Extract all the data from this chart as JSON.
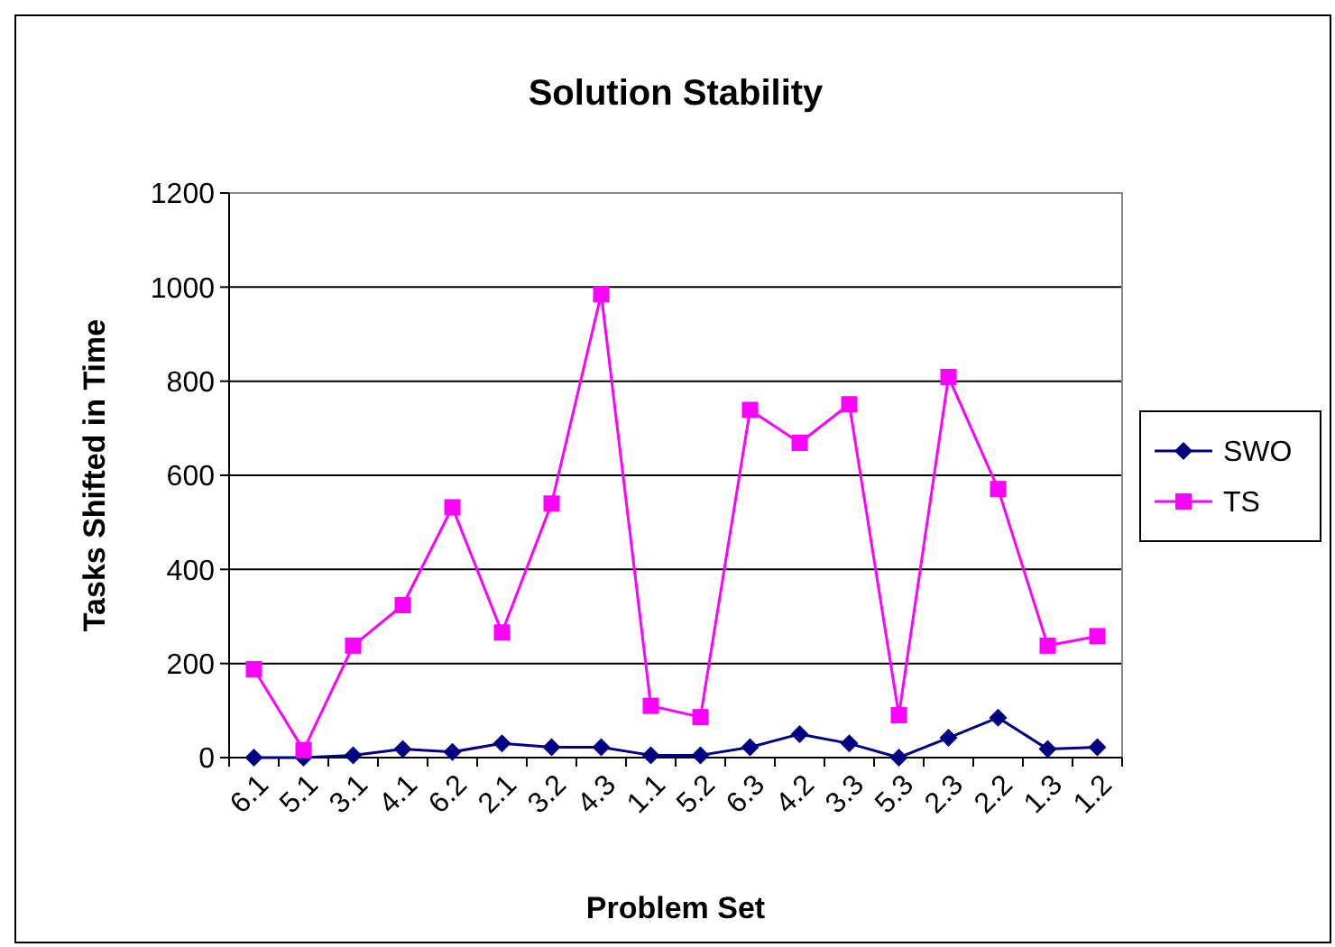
{
  "chart_data": {
    "type": "line",
    "title": "Solution Stability",
    "xlabel": "Problem Set",
    "ylabel": "Tasks Shifted in Time",
    "categories": [
      "6.1",
      "5.1",
      "3.1",
      "4.1",
      "6.2",
      "2.1",
      "3.2",
      "4.3",
      "1.1",
      "5.2",
      "6.3",
      "4.2",
      "3.3",
      "5.3",
      "2.3",
      "2.2",
      "1.3",
      "1.2"
    ],
    "series": [
      {
        "name": "SWO",
        "color": "#000080",
        "marker": "diamond",
        "values": [
          0,
          0,
          5,
          18,
          12,
          30,
          22,
          22,
          5,
          5,
          22,
          50,
          30,
          0,
          42,
          85,
          18,
          22
        ]
      },
      {
        "name": "TS",
        "color": "#ff00ff",
        "marker": "square",
        "values": [
          188,
          16,
          238,
          324,
          532,
          266,
          540,
          985,
          110,
          86,
          739,
          669,
          751,
          90,
          809,
          571,
          238,
          258
        ]
      }
    ],
    "ylim": [
      0,
      1200
    ],
    "yticks": [
      0,
      200,
      400,
      600,
      800,
      1000,
      1200
    ],
    "grid": "y",
    "legend": "right"
  }
}
